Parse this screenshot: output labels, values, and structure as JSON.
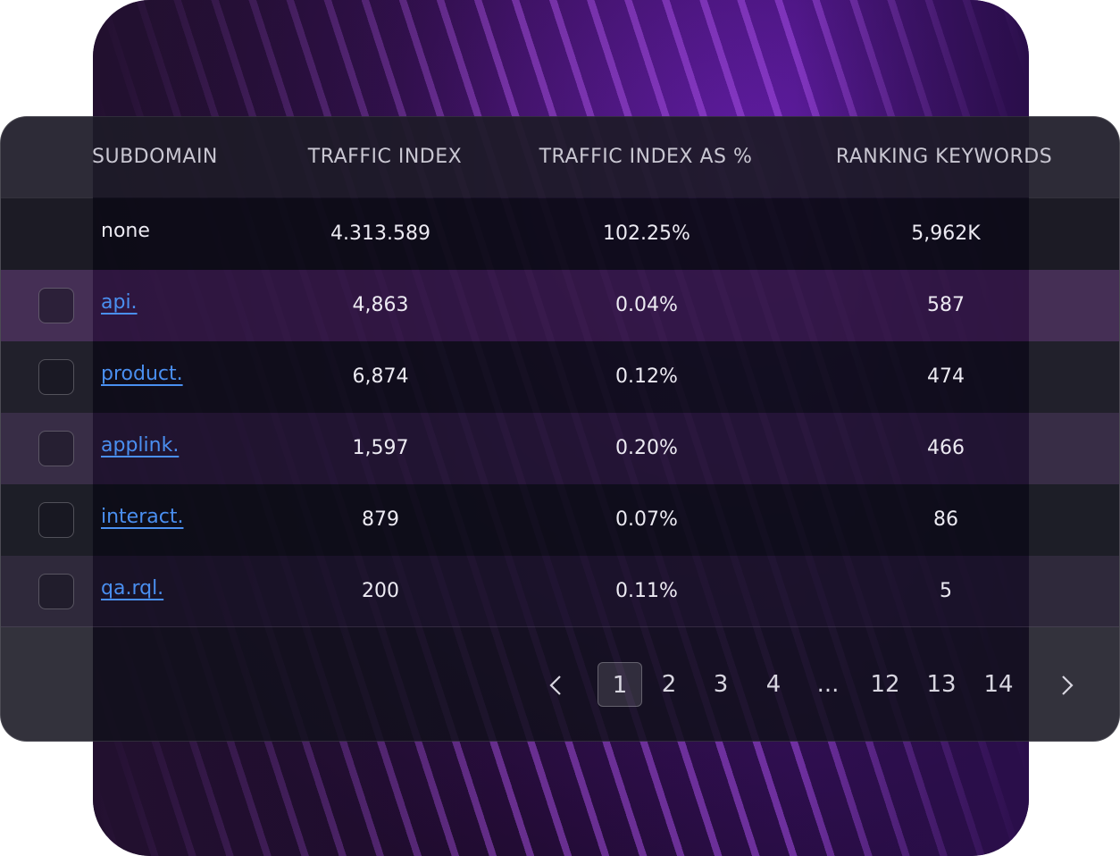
{
  "table": {
    "columns": [
      "SUBDOMAIN",
      "TRAFFIC INDEX",
      "TRAFFIC INDEX AS %",
      "RANKING KEYWORDS"
    ],
    "rows": [
      [
        "none",
        "4.313.589",
        "102.25%",
        "5,962K"
      ],
      [
        "api.",
        "4,863",
        "0.04%",
        "587"
      ],
      [
        "product.",
        "6,874",
        "0.12%",
        "474"
      ],
      [
        "applink.",
        "1,597",
        "0.20%",
        "466"
      ],
      [
        "interact.",
        "879",
        "0.07%",
        "86"
      ],
      [
        "qa.rql.",
        "200",
        "0.11%",
        "5"
      ]
    ]
  },
  "pagination": {
    "pages": [
      "1",
      "2",
      "3",
      "4",
      "...",
      "12",
      "13",
      "14"
    ]
  }
}
